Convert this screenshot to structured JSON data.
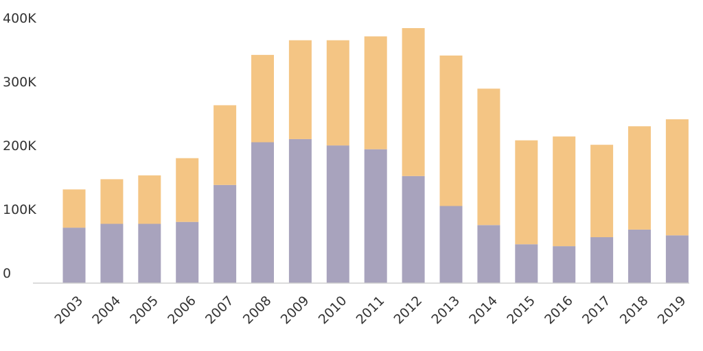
{
  "chart_data": {
    "type": "bar",
    "stacked": true,
    "title": "",
    "xlabel": "",
    "ylabel": "",
    "categories": [
      "2003",
      "2004",
      "2005",
      "2006",
      "2007",
      "2008",
      "2009",
      "2010",
      "2011",
      "2012",
      "2013",
      "2014",
      "2015",
      "2016",
      "2017",
      "2018",
      "2019"
    ],
    "series": [
      {
        "color": "#a8a3bd",
        "values": [
          87000,
          93000,
          93000,
          96000,
          154000,
          221000,
          226000,
          216000,
          210000,
          168000,
          121000,
          91000,
          61000,
          58000,
          72000,
          84000,
          75000
        ]
      },
      {
        "color": "#f4c584",
        "values": [
          60000,
          70000,
          76000,
          100000,
          125000,
          137000,
          155000,
          165000,
          177000,
          232000,
          236000,
          214000,
          163000,
          172000,
          145000,
          162000,
          182000
        ]
      }
    ],
    "yticks": [
      0,
      100000,
      200000,
      300000,
      400000
    ],
    "ytick_labels": [
      "0",
      "100K",
      "200K",
      "300K",
      "400K"
    ],
    "ylim": [
      0,
      400000
    ],
    "grid": false,
    "legend": "none"
  }
}
